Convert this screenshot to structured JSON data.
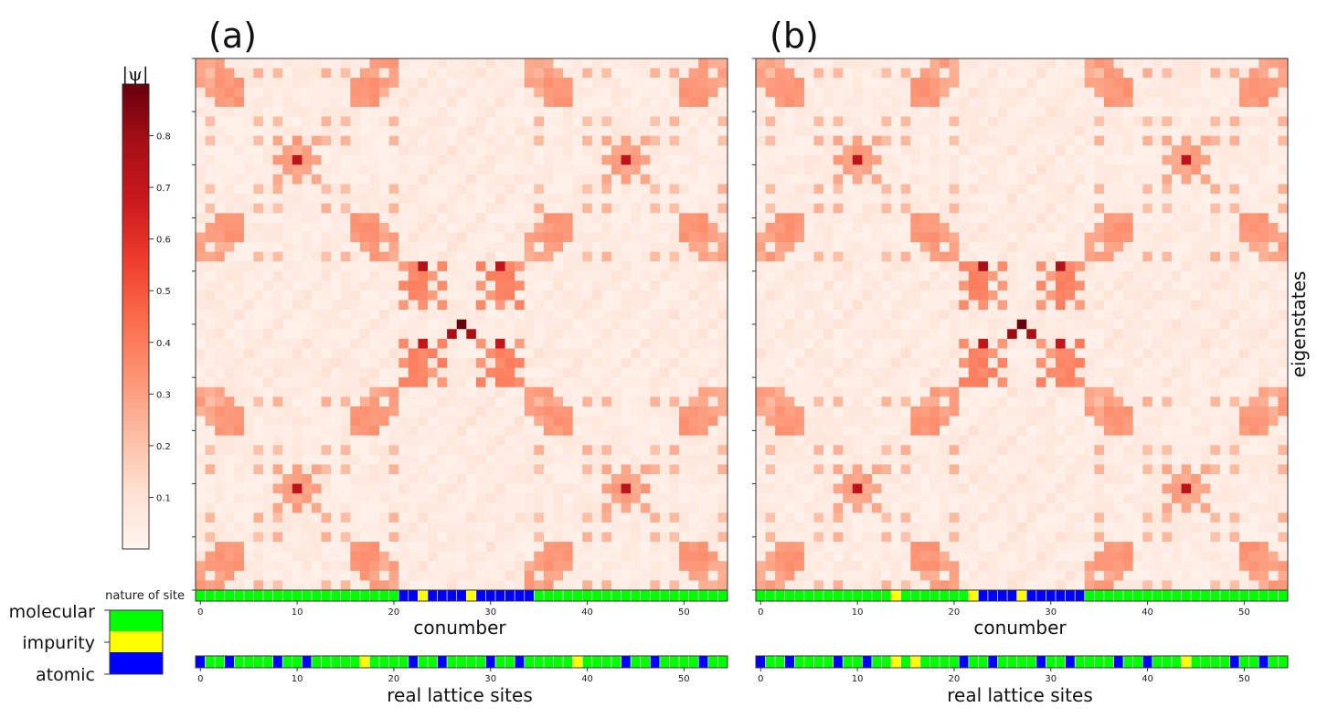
{
  "chart_data": {
    "type": "heatmap",
    "colorbar": {
      "label": "|ψ|",
      "ticks": [
        0.1,
        0.2,
        0.3,
        0.4,
        0.5,
        0.6,
        0.7,
        0.8
      ],
      "tick_labels": [
        "0.1",
        "0.2",
        "0.3",
        "0.4",
        "0.5",
        "0.6",
        "0.7",
        "0.8"
      ],
      "range": [
        0,
        0.9
      ],
      "colormap": "Reds"
    },
    "ylabel": "eigenstates",
    "site_label": "nature of site",
    "site_legend": [
      {
        "name": "molecular",
        "color": "#00ff00"
      },
      {
        "name": "impurity",
        "color": "#ffff00"
      },
      {
        "name": "atomic",
        "color": "#0000ff"
      }
    ],
    "grid_size": 55,
    "x_ticks": [
      0,
      10,
      20,
      30,
      40,
      50
    ],
    "x_tick_labels": [
      "0",
      "10",
      "20",
      "30",
      "40",
      "50"
    ],
    "panels": [
      {
        "label": "(a)",
        "xlabel": "conumber",
        "lattice_xlabel": "real lattice sites",
        "nature_of_site": "MMMMMMMMMMMMMMMMMMMMMAAIAAAAIAAAAAAMMMMMMMMMMMMMMMMMMMMM",
        "lattice_sites": "AMMAMMMMAMMAMMMMMIMMMMAMMAMMMMAMMAMMMMMIMMMMAMMAMMMMA",
        "peaks": [
          {
            "row": 10,
            "col": 10,
            "value": 0.72
          },
          {
            "row": 10,
            "col": 44,
            "value": 0.72
          },
          {
            "row": 44,
            "col": 10,
            "value": 0.72
          },
          {
            "row": 44,
            "col": 44,
            "value": 0.72
          },
          {
            "row": 21,
            "col": 23,
            "value": 0.75
          },
          {
            "row": 21,
            "col": 31,
            "value": 0.72
          },
          {
            "row": 27,
            "col": 27,
            "value": 0.9
          },
          {
            "row": 28,
            "col": 26,
            "value": 0.78
          },
          {
            "row": 28,
            "col": 28,
            "value": 0.78
          },
          {
            "row": 29,
            "col": 23,
            "value": 0.7
          },
          {
            "row": 29,
            "col": 31,
            "value": 0.7
          }
        ]
      },
      {
        "label": "(b)",
        "xlabel": "conumber",
        "lattice_xlabel": "real lattice sites",
        "nature_of_site": "MMMMMMMMMMMMMMIMMMMMMMIAAAAIAAAAAAMMMMMMMMMMMMMMMMMMMMMMM",
        "lattice_sites": "AMMAMMMMAMMAMMIMIMMMMAMMAMMMMAMMAMMMMAMMAMMMIMMMMAMMA",
        "peaks": [
          {
            "row": 10,
            "col": 10,
            "value": 0.72
          },
          {
            "row": 10,
            "col": 44,
            "value": 0.72
          },
          {
            "row": 44,
            "col": 10,
            "value": 0.72
          },
          {
            "row": 44,
            "col": 44,
            "value": 0.72
          },
          {
            "row": 21,
            "col": 23,
            "value": 0.78
          },
          {
            "row": 21,
            "col": 31,
            "value": 0.75
          },
          {
            "row": 27,
            "col": 27,
            "value": 0.92
          },
          {
            "row": 28,
            "col": 26,
            "value": 0.8
          },
          {
            "row": 28,
            "col": 28,
            "value": 0.78
          },
          {
            "row": 29,
            "col": 23,
            "value": 0.7
          },
          {
            "row": 29,
            "col": 31,
            "value": 0.7
          }
        ]
      }
    ]
  }
}
